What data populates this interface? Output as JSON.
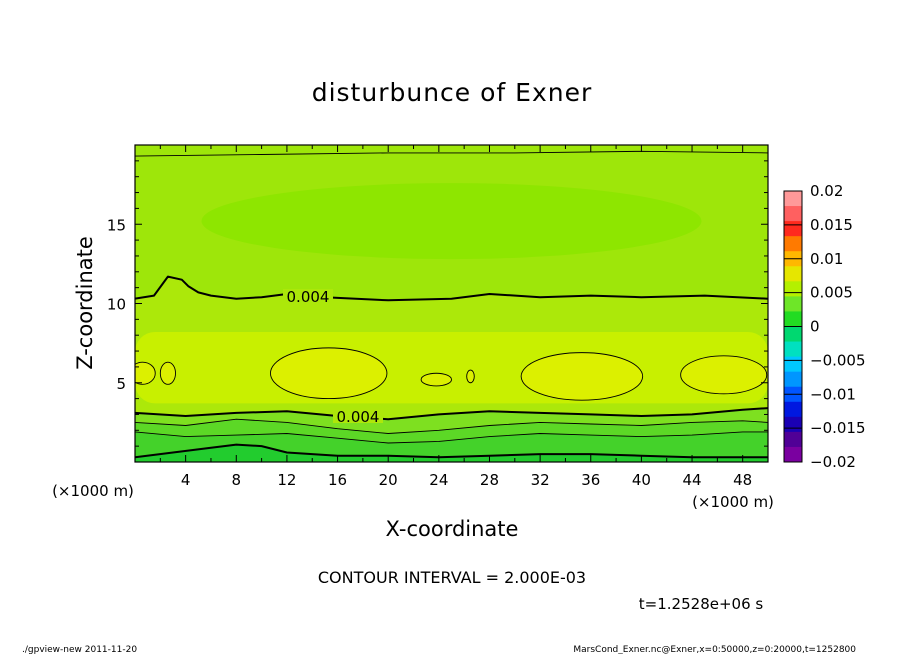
{
  "chart_data": {
    "type": "heatmap",
    "title": "disturbunce of Exner",
    "xlabel": "X-coordinate",
    "ylabel": "Z-coordinate",
    "x_unit_left": "(×1000 m)",
    "x_unit_right": "(×1000 m)",
    "xlim": [
      0,
      50
    ],
    "ylim": [
      0,
      20
    ],
    "x_ticks": [
      4,
      8,
      12,
      16,
      20,
      24,
      28,
      32,
      36,
      40,
      44,
      48
    ],
    "y_ticks": [
      5,
      10,
      15
    ],
    "colorbar": {
      "range": [
        -0.02,
        0.02
      ],
      "labels": [
        "0.02",
        "0.015",
        "0.01",
        "0.005",
        "0",
        "−0.005",
        "−0.01",
        "−0.015",
        "−0.02"
      ],
      "colors": [
        "#ff9999",
        "#ff6060",
        "#ff2a1e",
        "#ff7a00",
        "#ffb800",
        "#e6e600",
        "#b4f000",
        "#6ee628",
        "#22dc22",
        "#00d870",
        "#00e0c0",
        "#00c8ff",
        "#0096ff",
        "#0055ff",
        "#0018e0",
        "#1a00b4",
        "#500096",
        "#7a00a0"
      ]
    },
    "contour_interval": "CONTOUR INTERVAL = 2.000E-03",
    "contour_labels": [
      "0.004",
      "0.004"
    ],
    "contours": [
      {
        "level": 0.004,
        "kind": "thick",
        "points": [
          [
            0,
            10.3
          ],
          [
            1.5,
            10.5
          ],
          [
            2.6,
            11.7
          ],
          [
            3.7,
            11.5
          ],
          [
            4.2,
            11.1
          ],
          [
            5,
            10.7
          ],
          [
            6,
            10.5
          ],
          [
            8,
            10.3
          ],
          [
            10,
            10.4
          ],
          [
            12,
            10.6
          ],
          [
            15,
            10.4
          ],
          [
            20,
            10.2
          ],
          [
            25,
            10.3
          ],
          [
            28,
            10.6
          ],
          [
            32,
            10.4
          ],
          [
            36,
            10.5
          ],
          [
            40,
            10.4
          ],
          [
            45,
            10.5
          ],
          [
            50,
            10.3
          ]
        ]
      },
      {
        "level": 0.006,
        "kind": "thin",
        "points": [
          [
            0,
            2.5
          ],
          [
            4,
            2.3
          ],
          [
            8,
            2.7
          ],
          [
            12,
            2.5
          ],
          [
            16,
            2.1
          ],
          [
            20,
            1.8
          ],
          [
            24,
            2.0
          ],
          [
            28,
            2.3
          ],
          [
            32,
            2.5
          ],
          [
            36,
            2.4
          ],
          [
            40,
            2.3
          ],
          [
            44,
            2.5
          ],
          [
            48,
            2.6
          ],
          [
            50,
            2.5
          ]
        ]
      },
      {
        "level": 0.004,
        "kind": "thick",
        "points": [
          [
            0,
            3.1
          ],
          [
            4,
            2.9
          ],
          [
            8,
            3.1
          ],
          [
            12,
            3.2
          ],
          [
            16,
            2.9
          ],
          [
            20,
            2.7
          ],
          [
            24,
            3.0
          ],
          [
            28,
            3.2
          ],
          [
            32,
            3.1
          ],
          [
            36,
            3.0
          ],
          [
            40,
            2.9
          ],
          [
            44,
            3.0
          ],
          [
            48,
            3.3
          ],
          [
            50,
            3.4
          ]
        ]
      },
      {
        "level": 0.002,
        "kind": "thin",
        "points": [
          [
            0,
            1.9
          ],
          [
            4,
            1.6
          ],
          [
            8,
            1.7
          ],
          [
            12,
            1.8
          ],
          [
            16,
            1.5
          ],
          [
            20,
            1.2
          ],
          [
            24,
            1.3
          ],
          [
            28,
            1.6
          ],
          [
            32,
            1.8
          ],
          [
            36,
            1.7
          ],
          [
            40,
            1.6
          ],
          [
            44,
            1.7
          ],
          [
            48,
            1.9
          ],
          [
            50,
            1.9
          ]
        ]
      },
      {
        "level": 0.0,
        "kind": "thick",
        "points": [
          [
            0,
            0.3
          ],
          [
            3,
            0.6
          ],
          [
            6,
            0.9
          ],
          [
            8,
            1.1
          ],
          [
            10,
            1.0
          ],
          [
            12,
            0.6
          ],
          [
            16,
            0.4
          ],
          [
            20,
            0.4
          ],
          [
            24,
            0.3
          ],
          [
            28,
            0.4
          ],
          [
            32,
            0.5
          ],
          [
            36,
            0.5
          ],
          [
            40,
            0.4
          ],
          [
            44,
            0.3
          ],
          [
            48,
            0.3
          ],
          [
            50,
            0.3
          ]
        ]
      },
      {
        "level": 0.006,
        "kind": "thin",
        "points": [
          [
            0,
            19.3
          ],
          [
            10,
            19.4
          ],
          [
            20,
            19.5
          ],
          [
            30,
            19.5
          ],
          [
            40,
            19.6
          ],
          [
            50,
            19.5
          ]
        ]
      }
    ],
    "closed_contours": [
      {
        "level": 0.008,
        "cx": 15.3,
        "cy": 5.6,
        "rx": 4.6,
        "ry": 1.6
      },
      {
        "level": 0.008,
        "cx": 35.3,
        "cy": 5.4,
        "rx": 4.8,
        "ry": 1.5
      },
      {
        "level": 0.008,
        "cx": 46.5,
        "cy": 5.5,
        "rx": 3.4,
        "ry": 1.2
      },
      {
        "level": 0.008,
        "cx": 0.6,
        "cy": 5.6,
        "rx": 1.0,
        "ry": 0.7
      },
      {
        "level": 0.008,
        "cx": 2.6,
        "cy": 5.6,
        "rx": 0.6,
        "ry": 0.7
      },
      {
        "level": 0.008,
        "cx": 23.8,
        "cy": 5.2,
        "rx": 1.2,
        "ry": 0.4
      },
      {
        "level": 0.008,
        "cx": 26.5,
        "cy": 5.4,
        "rx": 0.3,
        "ry": 0.4
      }
    ]
  },
  "time_label": "t=1.2528e+06 s",
  "footer": {
    "left": "./gpview-new   2011-11-20",
    "right": "MarsCond_Exner.nc@Exner,x=0:50000,z=0:20000,t=1252800"
  },
  "colors": {
    "band_upper": "#9ee60a",
    "band_low_pressure": "#8ee600",
    "band_mid": "#ace80a",
    "band_warm": "#c8f000",
    "band_core": "#dcf000",
    "band_bottom_1": "#7ee020",
    "band_bottom_2": "#5cd826",
    "band_bottom_3": "#22cc2e"
  }
}
